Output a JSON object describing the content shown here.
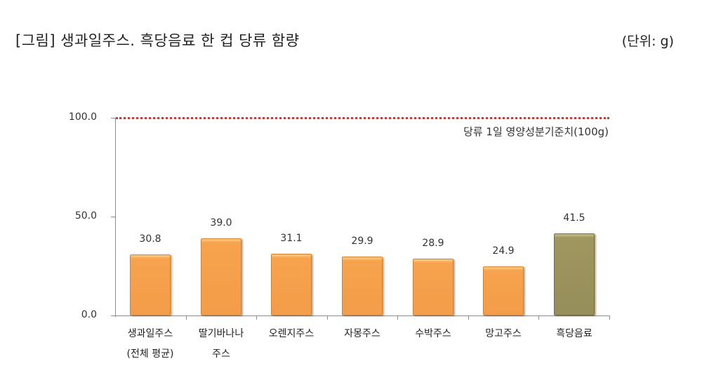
{
  "header": {
    "title": "[그림] 생과일주스. 흑당음료 한 컵 당류 함량",
    "unit": "(단위: g)"
  },
  "chart_data": {
    "type": "bar",
    "title": "[그림] 생과일주스. 흑당음료 한 컵 당류 함량",
    "unit_label": "(단위: g)",
    "xlabel": "",
    "ylabel": "",
    "ylim": [
      0,
      100
    ],
    "yticks": [
      "0.0",
      "50.0",
      "100.0"
    ],
    "grid": false,
    "legend": null,
    "categories": [
      "생과일주스 (전체 평균)",
      "딸기바나나 주스",
      "오렌지주스",
      "자몽주스",
      "수박주스",
      "망고주스",
      "흑당음료"
    ],
    "category_lines": [
      [
        "생과일주스",
        "(전체 평균)"
      ],
      [
        "딸기바나나",
        "주스"
      ],
      [
        "오렌지주스"
      ],
      [
        "자몽주스"
      ],
      [
        "수박주스"
      ],
      [
        "망고주스"
      ],
      [
        "흑당음료"
      ]
    ],
    "values": [
      30.8,
      39.0,
      31.1,
      29.9,
      28.9,
      24.9,
      41.5
    ],
    "value_labels": [
      "30.8",
      "39.0",
      "31.1",
      "29.9",
      "28.9",
      "24.9",
      "41.5"
    ],
    "bar_colors": [
      "#f39c49",
      "#f39c49",
      "#f39c49",
      "#f39c49",
      "#f39c49",
      "#f39c49",
      "#968e5a"
    ],
    "reference_line": {
      "value": 100,
      "label": "당류 1일 영양성분기준치(100g)",
      "color": "#e0322d",
      "style": "dotted"
    }
  }
}
